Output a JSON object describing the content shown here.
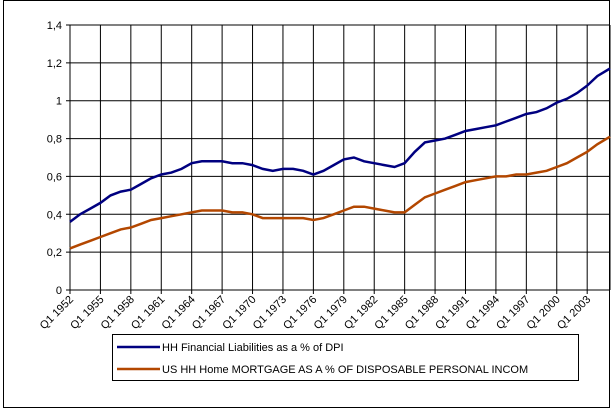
{
  "chart_data": {
    "type": "line",
    "x": [
      1952,
      1953,
      1954,
      1955,
      1956,
      1957,
      1958,
      1959,
      1960,
      1961,
      1962,
      1963,
      1964,
      1965,
      1966,
      1967,
      1968,
      1969,
      1970,
      1971,
      1972,
      1973,
      1974,
      1975,
      1976,
      1977,
      1978,
      1979,
      1980,
      1981,
      1982,
      1983,
      1984,
      1985,
      1986,
      1987,
      1988,
      1989,
      1990,
      1991,
      1992,
      1993,
      1994,
      1995,
      1996,
      1997,
      1998,
      1999,
      2000,
      2001,
      2002,
      2003,
      2004,
      2005.25
    ],
    "series": [
      {
        "name": "HH Financial Liabilities as a % of DPI",
        "color": "#000080",
        "values": [
          0.36,
          0.4,
          0.43,
          0.46,
          0.5,
          0.52,
          0.53,
          0.56,
          0.59,
          0.61,
          0.62,
          0.64,
          0.67,
          0.68,
          0.68,
          0.68,
          0.67,
          0.67,
          0.66,
          0.64,
          0.63,
          0.64,
          0.64,
          0.63,
          0.61,
          0.63,
          0.66,
          0.69,
          0.7,
          0.68,
          0.67,
          0.66,
          0.65,
          0.67,
          0.73,
          0.78,
          0.79,
          0.8,
          0.82,
          0.84,
          0.85,
          0.86,
          0.87,
          0.89,
          0.91,
          0.93,
          0.94,
          0.96,
          0.99,
          1.01,
          1.04,
          1.08,
          1.13,
          1.17
        ]
      },
      {
        "name": "US HH Home MORTGAGE AS A % OF DISPOSABLE PERSONAL INCOM",
        "color": "#b34700",
        "values": [
          0.22,
          0.24,
          0.26,
          0.28,
          0.3,
          0.32,
          0.33,
          0.35,
          0.37,
          0.38,
          0.39,
          0.4,
          0.41,
          0.42,
          0.42,
          0.42,
          0.41,
          0.41,
          0.4,
          0.38,
          0.38,
          0.38,
          0.38,
          0.38,
          0.37,
          0.38,
          0.4,
          0.42,
          0.44,
          0.44,
          0.43,
          0.42,
          0.41,
          0.41,
          0.45,
          0.49,
          0.51,
          0.53,
          0.55,
          0.57,
          0.58,
          0.59,
          0.6,
          0.6,
          0.61,
          0.61,
          0.62,
          0.63,
          0.65,
          0.67,
          0.7,
          0.73,
          0.77,
          0.81
        ]
      }
    ],
    "xlim": [
      1952,
      2005.25
    ],
    "xticks": [
      {
        "value": 1952,
        "label": "Q1 1952"
      },
      {
        "value": 1955,
        "label": "Q1 1955"
      },
      {
        "value": 1958,
        "label": "Q1 1958"
      },
      {
        "value": 1961,
        "label": "Q1 1961"
      },
      {
        "value": 1964,
        "label": "Q1 1964"
      },
      {
        "value": 1967,
        "label": "Q1 1967"
      },
      {
        "value": 1970,
        "label": "Q1 1970"
      },
      {
        "value": 1973,
        "label": "Q1 1973"
      },
      {
        "value": 1976,
        "label": "Q1 1976"
      },
      {
        "value": 1979,
        "label": "Q1 1979"
      },
      {
        "value": 1982,
        "label": "Q1 1982"
      },
      {
        "value": 1985,
        "label": "Q1 1985"
      },
      {
        "value": 1988,
        "label": "Q1 1988"
      },
      {
        "value": 1991,
        "label": "Q1 1991"
      },
      {
        "value": 1994,
        "label": "Q1 1994"
      },
      {
        "value": 1997,
        "label": "Q1 1997"
      },
      {
        "value": 2000,
        "label": "Q1 2000"
      },
      {
        "value": 2003,
        "label": "Q1 2003"
      }
    ],
    "ylim": [
      0,
      1.4
    ],
    "yticks": [
      0,
      {
        "value": 0.2,
        "label": "0,2"
      },
      {
        "value": 0.4,
        "label": "0,4"
      },
      {
        "value": 0.6,
        "label": "0,6"
      },
      {
        "value": 0.8,
        "label": "0,8"
      },
      1,
      {
        "value": 1.2,
        "label": "1,2"
      },
      {
        "value": 1.4,
        "label": "1,4"
      }
    ],
    "grid": true,
    "legend": "bottom"
  }
}
